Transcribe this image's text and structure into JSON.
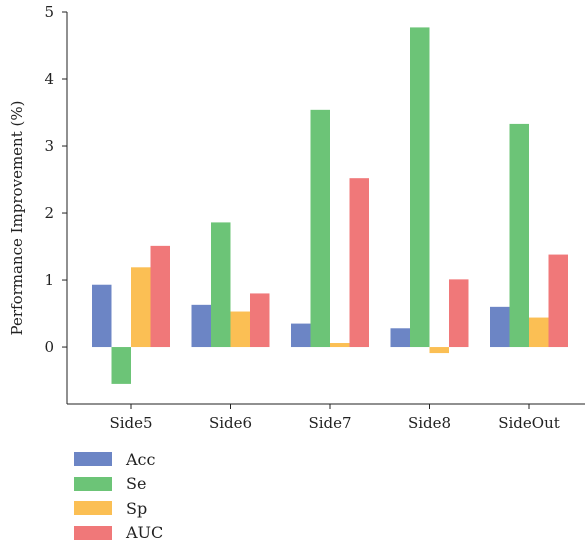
{
  "chart_data": {
    "type": "bar",
    "title": "",
    "xlabel": "",
    "ylabel": "Performance Improvement (%)",
    "ylim": [
      -0.85,
      5.0
    ],
    "yticks": [
      0,
      1,
      2,
      3,
      4,
      5
    ],
    "grid": false,
    "legend_position": "bottom-left",
    "categories": [
      "Side5",
      "Side6",
      "Side7",
      "Side8",
      "SideOut"
    ],
    "series": [
      {
        "name": "Acc",
        "color": "#6c85c5",
        "values": [
          0.93,
          0.63,
          0.35,
          0.28,
          0.6
        ]
      },
      {
        "name": "Se",
        "color": "#6cc477",
        "values": [
          -0.55,
          1.86,
          3.54,
          4.77,
          3.33
        ]
      },
      {
        "name": "Sp",
        "color": "#fbbf54",
        "values": [
          1.19,
          0.53,
          0.06,
          -0.09,
          0.44
        ]
      },
      {
        "name": "AUC",
        "color": "#f07879",
        "values": [
          1.51,
          0.8,
          2.52,
          1.01,
          1.38
        ]
      }
    ]
  }
}
